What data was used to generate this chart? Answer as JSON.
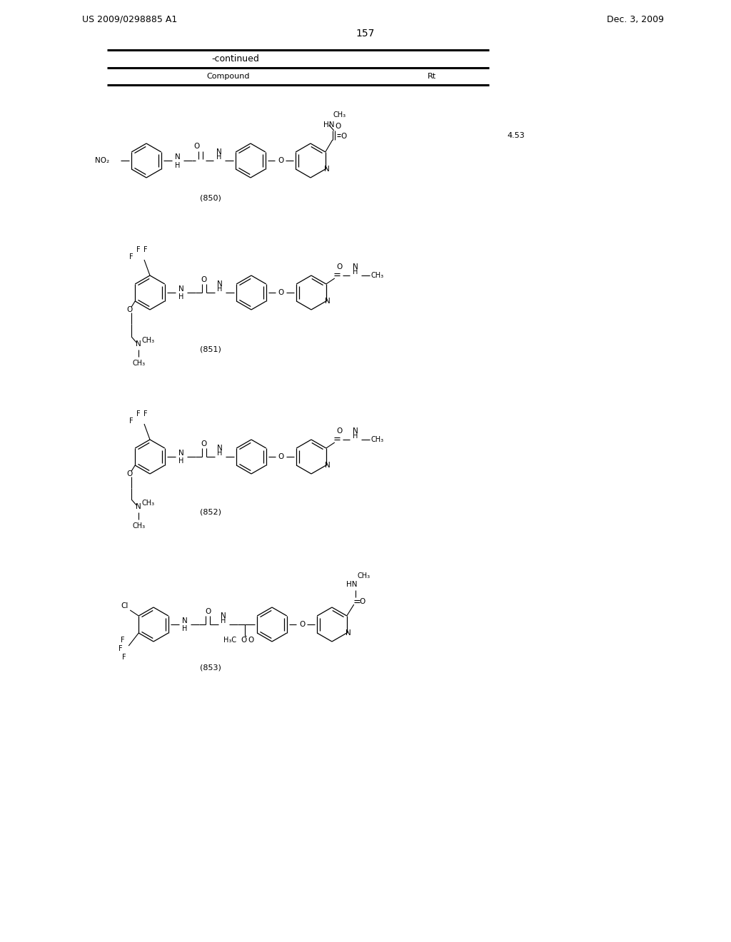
{
  "background_color": "#ffffff",
  "page_number": "157",
  "patent_number": "US 2009/0298885 A1",
  "patent_date": "Dec. 3, 2009",
  "table_continued": "-continued",
  "table_col1": "Compound",
  "table_col2": "Rt",
  "rt_850": "4.53"
}
